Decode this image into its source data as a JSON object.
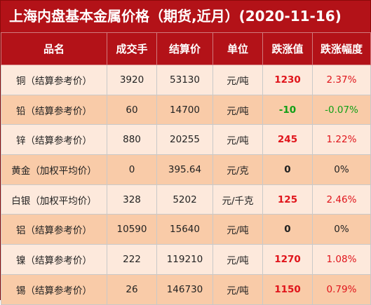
{
  "title": "上海内盘基本金属价格（期货,近月）(2020-11-16)",
  "headers": [
    "品名",
    "成交手",
    "结算价",
    "单位",
    "跌涨值",
    "跌涨幅度"
  ],
  "rows": [
    {
      "name": "铜（结算参考价）",
      "volume": "3920",
      "price": "53130",
      "unit": "元/吨",
      "change": "1230",
      "pct": "2.37%",
      "dir": "up"
    },
    {
      "name": "铅（结算参考价）",
      "volume": "60",
      "price": "14700",
      "unit": "元/吨",
      "change": "-10",
      "pct": "-0.07%",
      "dir": "down"
    },
    {
      "name": "锌（结算参考价）",
      "volume": "880",
      "price": "20255",
      "unit": "元/吨",
      "change": "245",
      "pct": "1.22%",
      "dir": "up"
    },
    {
      "name": "黄金（加权平均价）",
      "volume": "0",
      "price": "395.64",
      "unit": "元/克",
      "change": "0",
      "pct": "0%",
      "dir": "flat"
    },
    {
      "name": "白银（加权平均价）",
      "volume": "328",
      "price": "5202",
      "unit": "元/千克",
      "change": "125",
      "pct": "2.46%",
      "dir": "up"
    },
    {
      "name": "铝（结算参考价）",
      "volume": "10590",
      "price": "15640",
      "unit": "元/吨",
      "change": "0",
      "pct": "0%",
      "dir": "flat"
    },
    {
      "name": "镍（结算参考价）",
      "volume": "222",
      "price": "119210",
      "unit": "元/吨",
      "change": "1270",
      "pct": "1.08%",
      "dir": "up"
    },
    {
      "name": "锡（结算参考价）",
      "volume": "26",
      "price": "146730",
      "unit": "元/吨",
      "change": "1150",
      "pct": "0.79%",
      "dir": "up"
    }
  ],
  "colors": {
    "header_bg": "#b31218",
    "row_light": "#fde9dc",
    "row_dark": "#f9cba8",
    "up": "#e0141b",
    "down": "#11a016"
  }
}
